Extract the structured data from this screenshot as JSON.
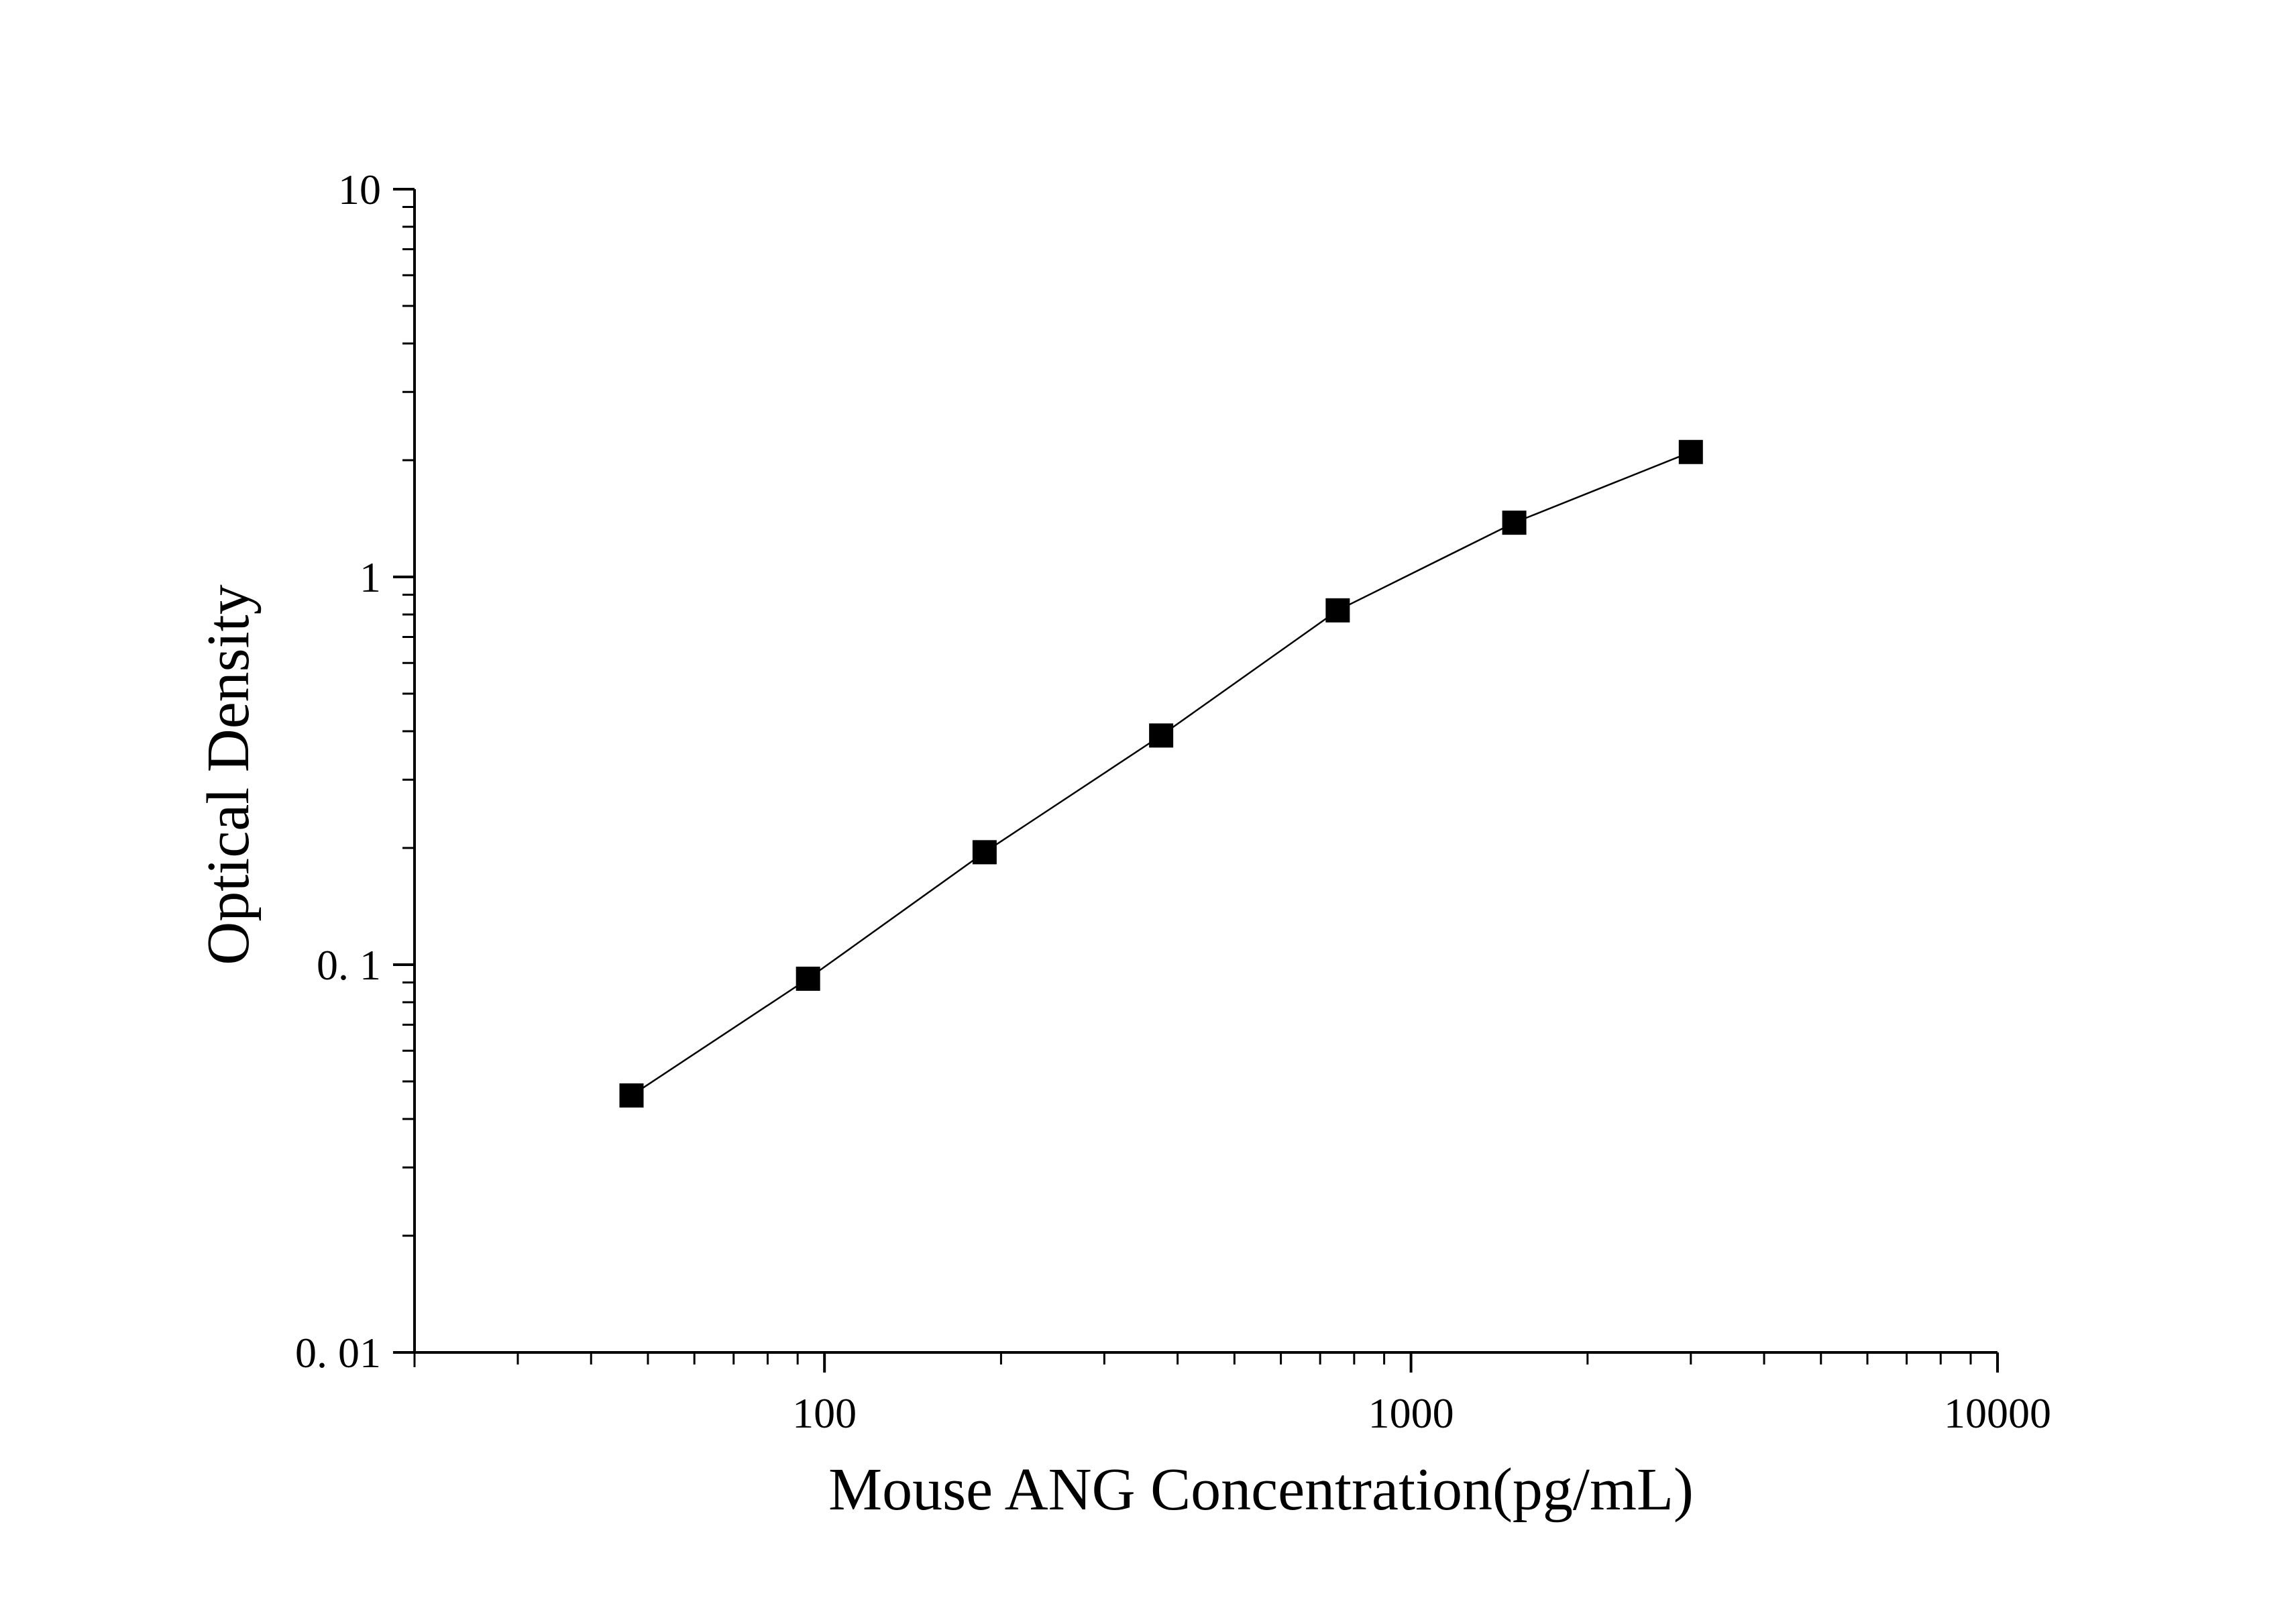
{
  "chart_data": {
    "type": "scatter",
    "title": "",
    "xlabel": "Mouse ANG Concentration(pg/mL)",
    "ylabel": "Optical Density",
    "x_scale": "log",
    "y_scale": "log",
    "xlim": [
      20,
      10000
    ],
    "ylim": [
      0.01,
      10
    ],
    "x_ticks": [
      {
        "value": 100,
        "label": "100"
      },
      {
        "value": 1000,
        "label": "1000"
      },
      {
        "value": 10000,
        "label": "10000"
      }
    ],
    "y_ticks": [
      {
        "value": 10,
        "label": "10"
      },
      {
        "value": 1,
        "label": "1"
      },
      {
        "value": 0.1,
        "label": "0. 1"
      },
      {
        "value": 0.01,
        "label": "0. 01"
      }
    ],
    "grid": false,
    "legend": "none",
    "marker": "square",
    "line": "connected",
    "colors": {
      "marker": "#000000",
      "line": "#000000",
      "axis": "#000000",
      "background": "#ffffff"
    },
    "series": [
      {
        "x": [
          46.88,
          93.75,
          187.5,
          375,
          750,
          1500,
          3000
        ],
        "y": [
          0.046,
          0.092,
          0.195,
          0.39,
          0.82,
          1.38,
          2.1
        ]
      }
    ]
  }
}
